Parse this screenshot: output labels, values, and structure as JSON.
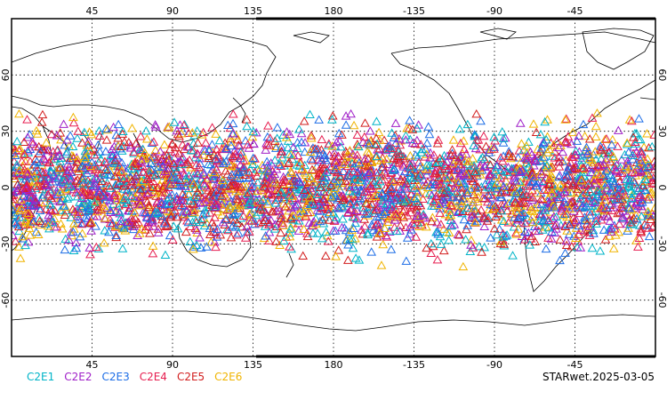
{
  "map": {
    "lon_ticks_top": [
      "45",
      "90",
      "135",
      "180",
      "-135",
      "-90",
      "-45"
    ],
    "lon_ticks_bottom": [
      "45",
      "90",
      "135",
      "180",
      "-135",
      "-90",
      "-45"
    ],
    "lat_ticks_left": [
      "60",
      "30",
      "0",
      "-30",
      "-60"
    ],
    "lat_ticks_right": [
      "60",
      "30",
      "0",
      "-30",
      "-60"
    ],
    "lon_values": [
      45,
      90,
      135,
      180,
      -135,
      -90,
      -45
    ],
    "lat_values": [
      60,
      30,
      0,
      -30,
      -60
    ],
    "lon_range": [
      0,
      360
    ],
    "lat_range": [
      -90,
      90
    ],
    "grid": true,
    "marker": "open-triangle",
    "coast_color": "#000000"
  },
  "chart_data": {
    "type": "scatter",
    "title": "",
    "xlabel": "",
    "ylabel": "",
    "xlim": [
      0,
      360
    ],
    "ylim": [
      -90,
      90
    ],
    "legend_position": "bottom-left",
    "point_lat_range": [
      -45,
      45
    ],
    "points_per_series": 600,
    "series": [
      {
        "name": "C2E1",
        "color": "#00b4c8"
      },
      {
        "name": "C2E2",
        "color": "#a020c8"
      },
      {
        "name": "C2E3",
        "color": "#1e6ee6"
      },
      {
        "name": "C2E4",
        "color": "#e61e50"
      },
      {
        "name": "C2E5",
        "color": "#d21e1e"
      },
      {
        "name": "C2E6",
        "color": "#f0b400"
      }
    ]
  },
  "footer": {
    "label": "STARwet.2025-03-05"
  }
}
